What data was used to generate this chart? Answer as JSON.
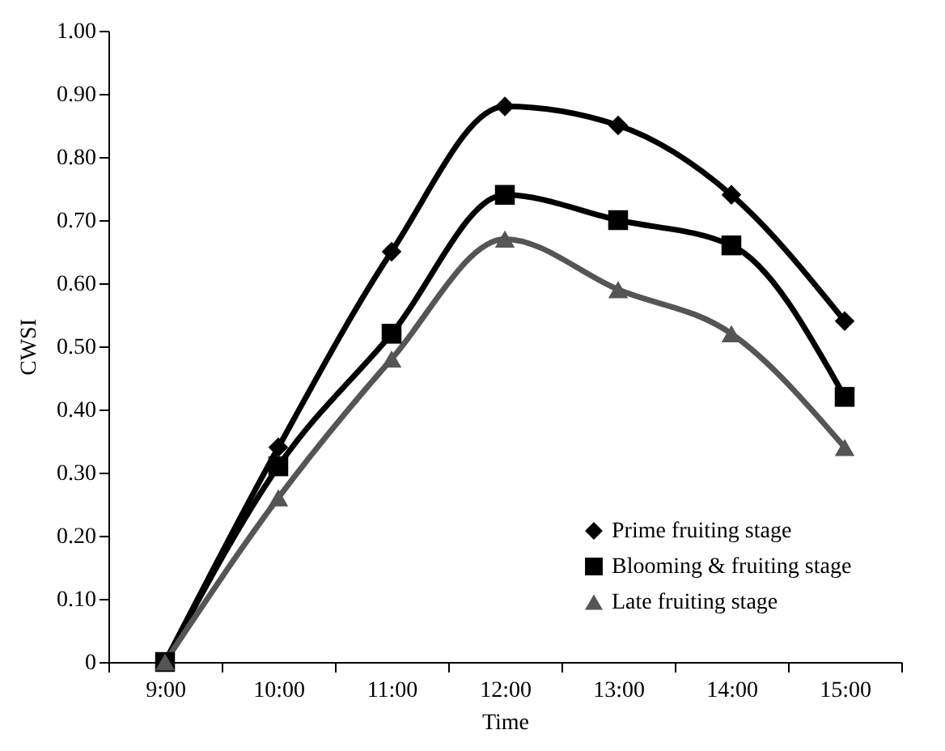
{
  "chart_data": {
    "type": "line",
    "xlabel": "Time",
    "ylabel": "CWSI",
    "categories": [
      "9:00",
      "10:00",
      "11:00",
      "12:00",
      "13:00",
      "14:00",
      "15:00"
    ],
    "series": [
      {
        "name": "Prime fruiting stage",
        "color": "#000000",
        "marker": "diamond",
        "values": [
          0,
          0.34,
          0.65,
          0.88,
          0.85,
          0.74,
          0.54
        ]
      },
      {
        "name": "Blooming & fruiting stage",
        "color": "#000000",
        "marker": "square",
        "values": [
          0,
          0.31,
          0.52,
          0.74,
          0.7,
          0.66,
          0.42
        ]
      },
      {
        "name": "Late fruiting stage",
        "color": "#555555",
        "marker": "triangle",
        "values": [
          0,
          0.26,
          0.48,
          0.67,
          0.59,
          0.52,
          0.34
        ]
      }
    ],
    "ylim": [
      0,
      1
    ],
    "yticks": [
      0,
      {
        "value": 0.1,
        "label": "0.10"
      },
      {
        "value": 0.2,
        "label": "0.20"
      },
      {
        "value": 0.3,
        "label": "0.30"
      },
      {
        "value": 0.4,
        "label": "0.40"
      },
      {
        "value": 0.5,
        "label": "0.50"
      },
      {
        "value": 0.6,
        "label": "0.60"
      },
      {
        "value": 0.7,
        "label": "0.70"
      },
      {
        "value": 0.8,
        "label": "0.80"
      },
      {
        "value": 0.9,
        "label": "0.90"
      },
      {
        "value": 1,
        "label": "1.00"
      }
    ],
    "grid": false,
    "legend": "bottom right",
    "line_style": "solid"
  }
}
